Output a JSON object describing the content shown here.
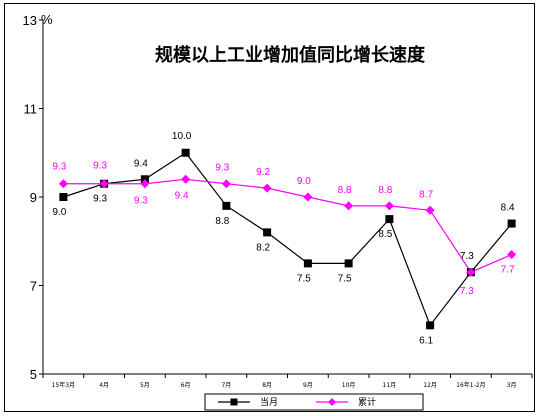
{
  "chart_data": {
    "type": "line",
    "title": "规模以上工业增加值同比增长速度",
    "ylabel": "%",
    "xlabel": "",
    "ylim": [
      5,
      13
    ],
    "yticks": [
      "13",
      "11",
      "9",
      "7",
      "5"
    ],
    "categories": [
      "15年3月",
      "4月",
      "5月",
      "6月",
      "7月",
      "8月",
      "9月",
      "10月",
      "11月",
      "12月",
      "16年1-2月",
      "3月"
    ],
    "grid": false,
    "legend_position": "bottom",
    "series": [
      {
        "name": "当月",
        "color": "#000000",
        "marker": "square",
        "values": [
          9.0,
          9.3,
          9.4,
          10.0,
          8.8,
          8.2,
          7.5,
          7.5,
          8.5,
          6.1,
          7.3,
          8.4
        ],
        "labels": [
          "9.0",
          "9.3",
          "9.4",
          "10.0",
          "8.8",
          "8.2",
          "7.5",
          "7.5",
          "8.5",
          "6.1",
          "7.3",
          "8.4"
        ]
      },
      {
        "name": "累计",
        "color": "#ff00ff",
        "marker": "diamond",
        "values": [
          9.3,
          9.3,
          9.3,
          9.4,
          9.3,
          9.2,
          9.0,
          8.8,
          8.8,
          8.7,
          7.3,
          7.7
        ],
        "labels": [
          "9.3",
          "9.3",
          "9.3",
          "9.4",
          "9.3",
          "9.2",
          "9.0",
          "8.8",
          "8.8",
          "8.7",
          "7.3",
          "7.7"
        ]
      }
    ]
  }
}
